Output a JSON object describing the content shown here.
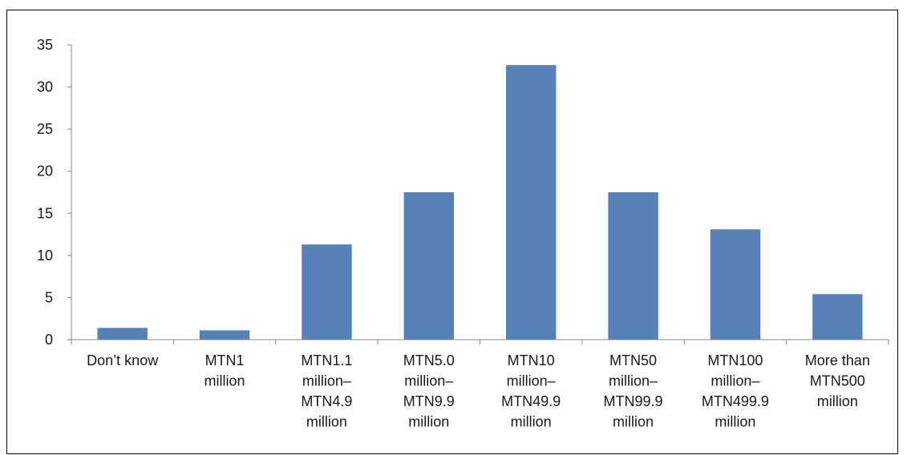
{
  "chart_data": {
    "type": "bar",
    "title": "",
    "xlabel": "",
    "ylabel": "",
    "ylim": [
      0,
      35
    ],
    "yticks": [
      0,
      5,
      10,
      15,
      20,
      25,
      30,
      35
    ],
    "grid": false,
    "legend": "none",
    "bar_color": "#5580B8",
    "categories": [
      "Don’t know",
      "MTN1 million",
      "MTN1.1 million– MTN4.9 million",
      "MTN5.0 million– MTN9.9 million",
      "MTN10 million– MTN49.9 million",
      "MTN50 million– MTN99.9 million",
      "MTN100 million– MTN499.9 million",
      "More than MTN500 million"
    ],
    "category_lines": [
      [
        "Don’t know"
      ],
      [
        "MTN1",
        "million"
      ],
      [
        "MTN1.1",
        "million–",
        "MTN4.9",
        "million"
      ],
      [
        "MTN5.0",
        "million–",
        "MTN9.9",
        "million"
      ],
      [
        "MTN10",
        "million–",
        "MTN49.9",
        "million"
      ],
      [
        "MTN50",
        "million–",
        "MTN99.9",
        "million"
      ],
      [
        "MTN100",
        "million–",
        "MTN499.9",
        "million"
      ],
      [
        "More than",
        "MTN500",
        "million"
      ]
    ],
    "values": [
      1.4,
      1.1,
      11.3,
      17.5,
      32.6,
      17.5,
      13.1,
      5.4
    ]
  }
}
